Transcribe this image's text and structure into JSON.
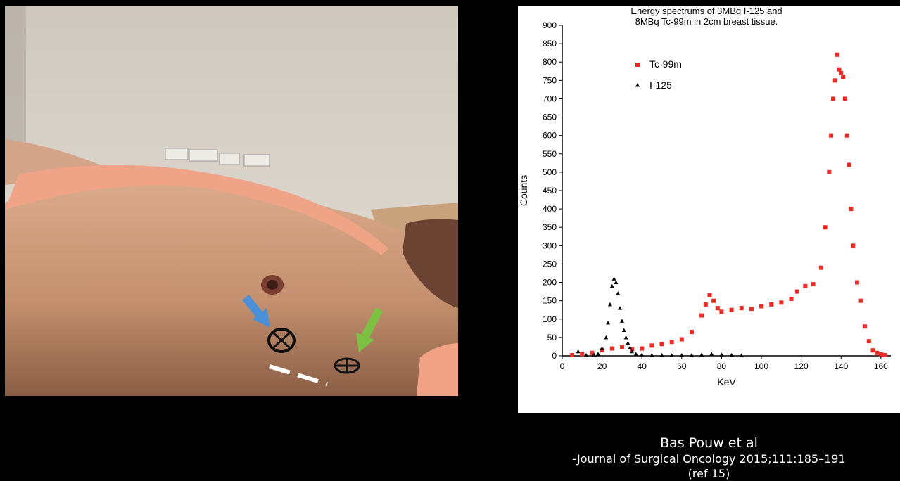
{
  "citation": {
    "author": "Bas Pouw et al",
    "journal": "-Journal of Surgical Oncology 2015;111:185–191",
    "ref": "(ref 15)"
  },
  "colors": {
    "tc99m": "#ee2a24",
    "i125": "#000000",
    "blue_arrow": "#4a90d9",
    "green_arrow": "#7cc142"
  },
  "photo": {
    "marker_symbol": "⊕"
  },
  "chart_data": {
    "type": "scatter",
    "title": "Energy spectrums of 3MBq I-125 and\n8MBq Tc-99m in 2cm breast tissue.",
    "xlabel": "KeV",
    "ylabel": "Counts",
    "xlim": [
      0,
      165
    ],
    "ylim": [
      0,
      900
    ],
    "xticks": [
      0,
      20,
      40,
      60,
      80,
      100,
      120,
      140,
      160
    ],
    "yticks": [
      0,
      50,
      100,
      150,
      200,
      250,
      300,
      350,
      400,
      450,
      500,
      550,
      600,
      650,
      700,
      750,
      800,
      850,
      900
    ],
    "grid": false,
    "legend_position": "top-left",
    "series": [
      {
        "name": "Tc-99m",
        "marker": "square",
        "x": [
          5,
          10,
          15,
          20,
          25,
          30,
          35,
          40,
          45,
          50,
          55,
          60,
          65,
          70,
          72,
          74,
          76,
          78,
          80,
          85,
          90,
          95,
          100,
          105,
          110,
          115,
          118,
          122,
          126,
          130,
          132,
          134,
          135,
          136,
          137,
          138,
          139,
          140,
          141,
          142,
          143,
          144,
          145,
          146,
          148,
          150,
          152,
          154,
          156,
          158,
          160,
          162
        ],
        "y": [
          2,
          5,
          8,
          15,
          20,
          25,
          18,
          20,
          28,
          32,
          38,
          45,
          65,
          110,
          140,
          165,
          150,
          130,
          120,
          125,
          130,
          128,
          135,
          140,
          145,
          155,
          175,
          190,
          195,
          240,
          350,
          500,
          600,
          700,
          750,
          820,
          780,
          770,
          760,
          700,
          600,
          520,
          400,
          300,
          200,
          150,
          80,
          40,
          15,
          8,
          4,
          2
        ]
      },
      {
        "name": "I-125",
        "marker": "triangle",
        "x": [
          8,
          12,
          16,
          18,
          20,
          22,
          23,
          24,
          25,
          26,
          27,
          28,
          29,
          30,
          31,
          32,
          33,
          34,
          35,
          37,
          40,
          45,
          50,
          55,
          60,
          65,
          70,
          75,
          80,
          85,
          90
        ],
        "y": [
          12,
          2,
          3,
          5,
          20,
          50,
          90,
          140,
          190,
          210,
          200,
          170,
          130,
          95,
          70,
          50,
          35,
          22,
          12,
          5,
          3,
          2,
          2,
          1,
          2,
          2,
          3,
          5,
          3,
          2,
          1
        ]
      }
    ]
  }
}
